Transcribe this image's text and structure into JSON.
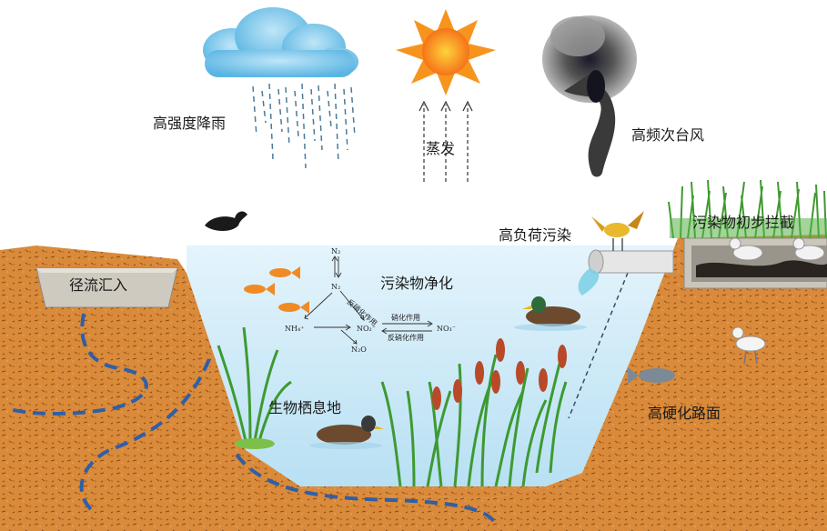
{
  "labels": {
    "heavy_rain": "高强度降雨",
    "evaporation": "蒸发",
    "typhoon": "高频次台风",
    "runoff_inflow": "径流汇入",
    "high_load_pollution": "高负荷污染",
    "pollutant_interception": "污染物初步拦截",
    "pollutant_purification": "污染物净化",
    "biological_habitat": "生物栖息地",
    "hardened_pavement": "高硬化路面"
  },
  "nitrogen_cycle": {
    "n2": "N₂",
    "n2_lower": "N₂",
    "nh4": "NH₄⁺",
    "no2": "NO₂⁻",
    "no3": "NO₃⁻",
    "n2o": "N₂O",
    "denitrification_upper": "反硝化作用",
    "nitrification": "硝化作用",
    "denitrification_lower": "反硝化作用"
  },
  "colors": {
    "soil": "#d98a3a",
    "water": "#cfe9f7",
    "sun": "#f7941d",
    "drain": "#2f5fa8"
  }
}
